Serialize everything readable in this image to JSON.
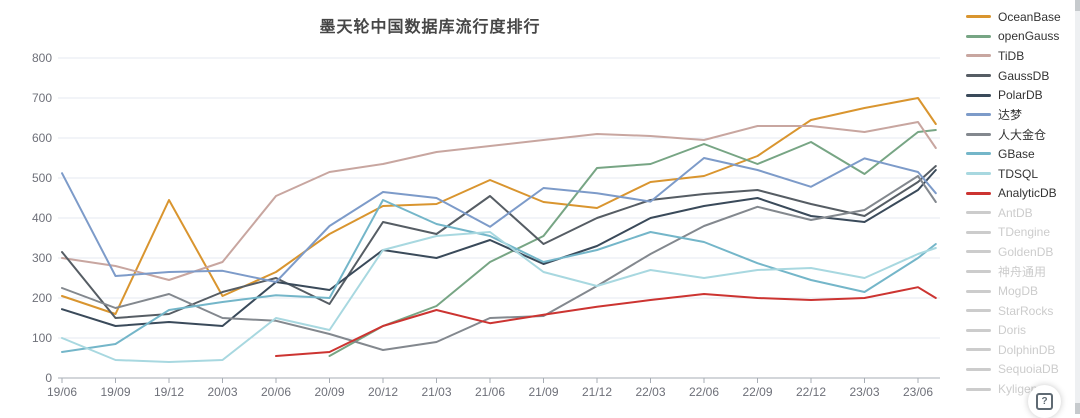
{
  "title": "墨天轮中国数据库流行度排行",
  "help_button": {
    "label": "?"
  },
  "legend": {
    "position": "right",
    "inactive_color": "#cccccc",
    "items": [
      {
        "label": "OceanBase",
        "color": "#d9952f",
        "enabled": true
      },
      {
        "label": "openGauss",
        "color": "#77a584",
        "enabled": true
      },
      {
        "label": "TiDB",
        "color": "#c8a6a0",
        "enabled": true
      },
      {
        "label": "GaussDB",
        "color": "#565d64",
        "enabled": true
      },
      {
        "label": "PolarDB",
        "color": "#3a4a5a",
        "enabled": true
      },
      {
        "label": "达梦",
        "color": "#7d9bc9",
        "enabled": true
      },
      {
        "label": "人大金仓",
        "color": "#83888e",
        "enabled": true
      },
      {
        "label": "GBase",
        "color": "#74b6c9",
        "enabled": true
      },
      {
        "label": "TDSQL",
        "color": "#a8d8e0",
        "enabled": true
      },
      {
        "label": "AnalyticDB",
        "color": "#cc3431",
        "enabled": true
      },
      {
        "label": "AntDB",
        "color": "#cccccc",
        "enabled": false
      },
      {
        "label": "TDengine",
        "color": "#cccccc",
        "enabled": false
      },
      {
        "label": "GoldenDB",
        "color": "#cccccc",
        "enabled": false
      },
      {
        "label": "神舟通用",
        "color": "#cccccc",
        "enabled": false
      },
      {
        "label": "MogDB",
        "color": "#cccccc",
        "enabled": false
      },
      {
        "label": "StarRocks",
        "color": "#cccccc",
        "enabled": false
      },
      {
        "label": "Doris",
        "color": "#cccccc",
        "enabled": false
      },
      {
        "label": "DolphinDB",
        "color": "#cccccc",
        "enabled": false
      },
      {
        "label": "SequoiaDB",
        "color": "#cccccc",
        "enabled": false
      },
      {
        "label": "Kyligence",
        "color": "#cccccc",
        "enabled": false
      }
    ]
  },
  "chart_data": {
    "type": "line",
    "title": "墨天轮中国数据库流行度排行",
    "xlabel": "",
    "ylabel": "",
    "ylim": [
      0,
      800
    ],
    "y_ticks": [
      0,
      100,
      200,
      300,
      400,
      500,
      600,
      700,
      800
    ],
    "grid": true,
    "legend_position": "right",
    "x_tick_labels": [
      "19/06",
      "19/09",
      "19/12",
      "20/03",
      "20/06",
      "20/09",
      "20/12",
      "21/03",
      "21/06",
      "21/09",
      "21/12",
      "22/03",
      "22/06",
      "22/09",
      "22/12",
      "23/03",
      "23/06"
    ],
    "x_tick_months": [
      0,
      3,
      6,
      9,
      12,
      15,
      18,
      21,
      24,
      27,
      30,
      33,
      36,
      39,
      42,
      45,
      48
    ],
    "sample_months": [
      0,
      3,
      6,
      9,
      12,
      15,
      18,
      21,
      24,
      27,
      30,
      33,
      36,
      39,
      42,
      45,
      48,
      49
    ],
    "note": "values estimated from gridlines; sampled quarterly 2019/06 - 2023/06 plus final month",
    "axis_label_color": "#6e7079",
    "grid_color": "#e4e9f2",
    "axis_color": "#a7adb5",
    "series": [
      {
        "name": "OceanBase",
        "color": "#d9952f",
        "values": [
          205,
          160,
          445,
          205,
          265,
          360,
          430,
          435,
          495,
          440,
          425,
          490,
          505,
          555,
          645,
          675,
          700,
          635
        ]
      },
      {
        "name": "openGauss",
        "color": "#77a584",
        "values": [
          null,
          null,
          null,
          null,
          null,
          55,
          130,
          180,
          290,
          355,
          525,
          535,
          585,
          535,
          590,
          510,
          615,
          620
        ]
      },
      {
        "name": "TiDB",
        "color": "#c8a6a0",
        "values": [
          300,
          280,
          245,
          290,
          455,
          515,
          535,
          565,
          580,
          595,
          610,
          605,
          595,
          630,
          630,
          615,
          640,
          575
        ]
      },
      {
        "name": "GaussDB",
        "color": "#565d64",
        "values": [
          315,
          150,
          160,
          215,
          250,
          185,
          390,
          360,
          455,
          335,
          400,
          445,
          460,
          470,
          435,
          405,
          490,
          530
        ]
      },
      {
        "name": "PolarDB",
        "color": "#3a4a5a",
        "values": [
          172,
          130,
          140,
          130,
          240,
          220,
          320,
          300,
          345,
          285,
          330,
          400,
          430,
          450,
          405,
          390,
          470,
          520
        ]
      },
      {
        "name": "达梦",
        "color": "#7d9bc9",
        "values": [
          512,
          255,
          265,
          268,
          240,
          380,
          465,
          450,
          378,
          475,
          462,
          441,
          550,
          520,
          478,
          549,
          515,
          462
        ]
      },
      {
        "name": "人大金仓",
        "color": "#83888e",
        "values": [
          225,
          175,
          210,
          150,
          143,
          110,
          70,
          90,
          150,
          155,
          230,
          310,
          380,
          428,
          395,
          420,
          505,
          440
        ]
      },
      {
        "name": "GBase",
        "color": "#74b6c9",
        "values": [
          65,
          85,
          170,
          190,
          207,
          200,
          445,
          385,
          355,
          290,
          320,
          365,
          340,
          287,
          245,
          215,
          300,
          335
        ]
      },
      {
        "name": "TDSQL",
        "color": "#a8d8e0",
        "values": [
          100,
          45,
          40,
          45,
          150,
          120,
          320,
          355,
          365,
          265,
          230,
          270,
          250,
          270,
          275,
          250,
          310,
          325
        ]
      },
      {
        "name": "AnalyticDB",
        "color": "#cc3431",
        "values": [
          null,
          null,
          null,
          null,
          55,
          65,
          130,
          170,
          137,
          158,
          178,
          195,
          210,
          200,
          195,
          200,
          227,
          200
        ]
      }
    ],
    "disabled_series": [
      "AntDB",
      "TDengine",
      "GoldenDB",
      "神舟通用",
      "MogDB",
      "StarRocks",
      "Doris",
      "DolphinDB",
      "SequoiaDB",
      "Kyligence"
    ]
  }
}
